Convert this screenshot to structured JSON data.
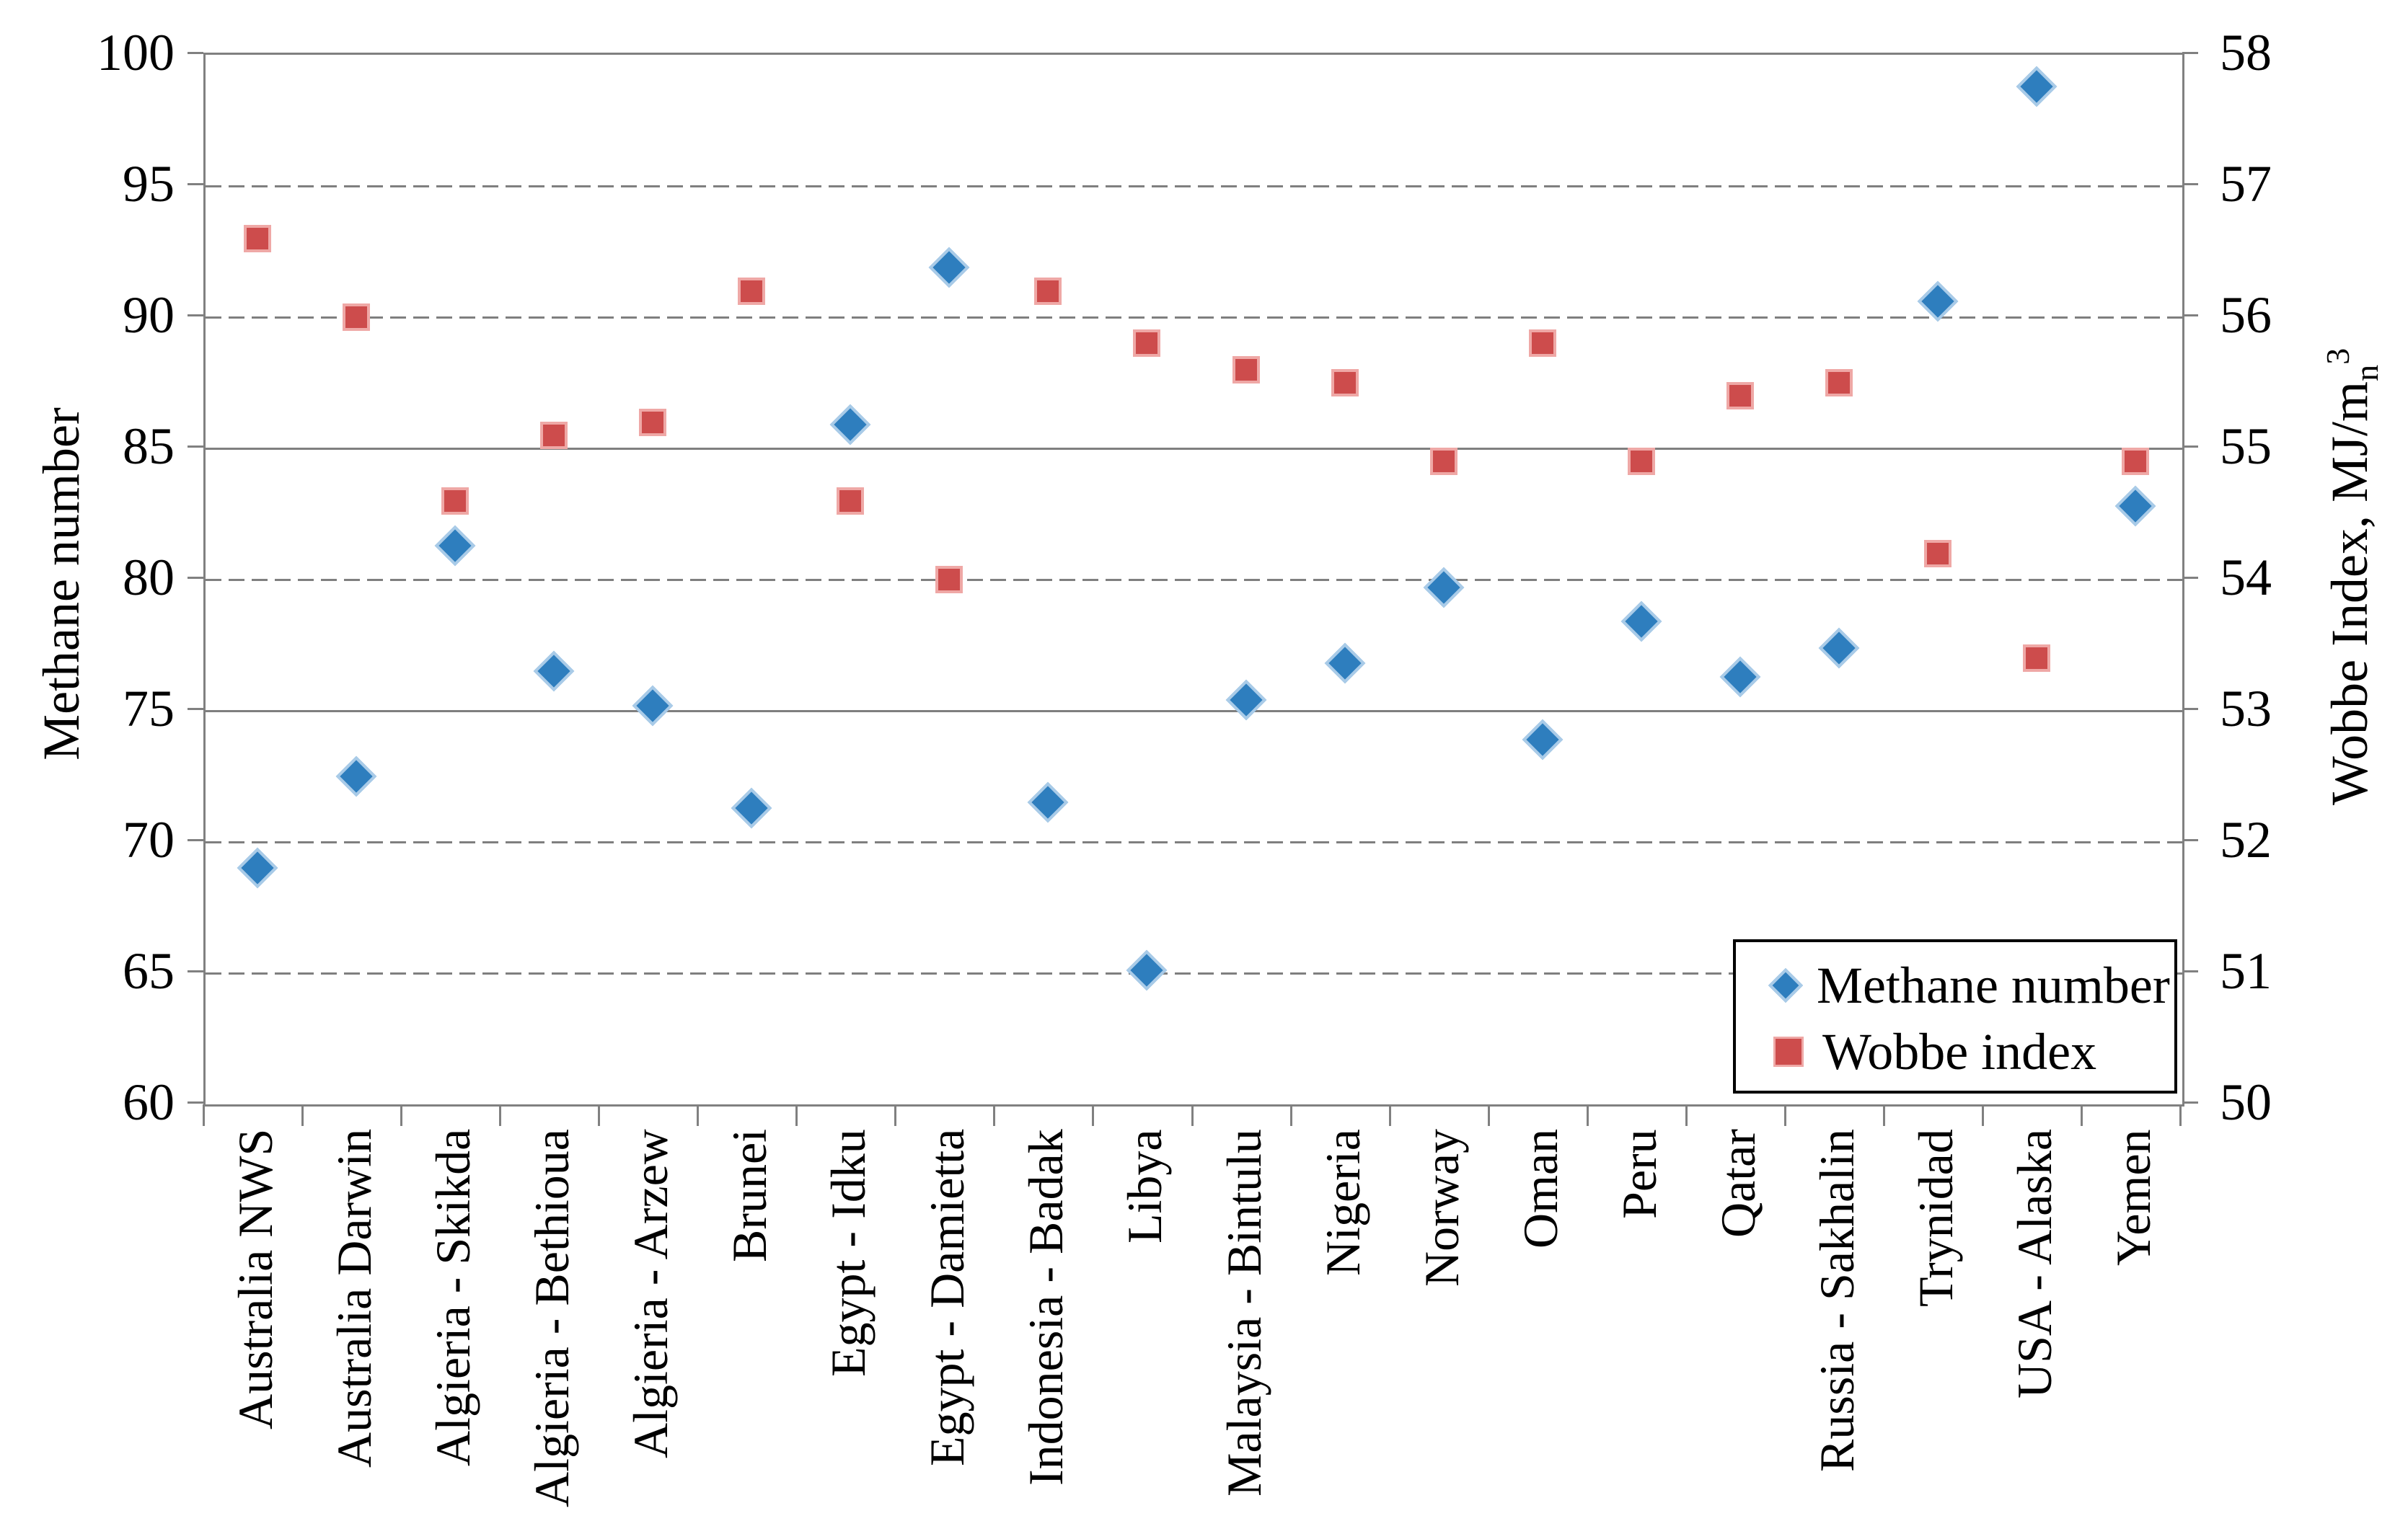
{
  "chart_data": {
    "type": "scatter",
    "title": "",
    "categories": [
      "Australia NWS",
      "Australia Darwin",
      "Algieria - Skikda",
      "Algieria - Bethioua",
      "Algieria - Arzew",
      "Brunei",
      "Egypt - Idku",
      "Egypt - Damietta",
      "Indonesia - Badak",
      "Libya",
      "Malaysia - Bintulu",
      "Nigeria",
      "Norway",
      "Oman",
      "Peru",
      "Qatar",
      "Russia - Sakhalin",
      "Trynidad",
      "USA - Alaska",
      "Yemen"
    ],
    "series": [
      {
        "name": "Methane number",
        "axis": "left",
        "marker": "diamond",
        "color": "#2e7ebe",
        "halo": "#a9cbe8",
        "values": [
          69.0,
          72.5,
          81.3,
          76.5,
          75.2,
          71.3,
          85.9,
          91.9,
          71.5,
          65.1,
          75.4,
          76.8,
          79.7,
          73.9,
          78.4,
          76.3,
          77.4,
          90.6,
          98.8,
          82.8
        ]
      },
      {
        "name": "Wobbe index",
        "axis": "right",
        "marker": "square",
        "color": "#cd4c4c",
        "halo": "#efa8a6",
        "values": [
          56.6,
          56.0,
          54.6,
          55.1,
          55.2,
          56.2,
          54.6,
          54.0,
          56.2,
          55.8,
          55.6,
          55.5,
          54.9,
          55.8,
          54.9,
          55.4,
          55.5,
          54.2,
          53.4,
          54.9
        ]
      }
    ],
    "left_axis": {
      "label": "Methane number",
      "min": 60,
      "max": 100,
      "step": 5,
      "ticks": [
        100,
        95,
        90,
        85,
        80,
        75,
        70,
        65,
        60
      ]
    },
    "right_axis": {
      "label_main": "Wobbe Index,  MJ/m",
      "label_sub": "n",
      "label_sup": "3",
      "min": 50,
      "max": 58,
      "step": 1,
      "ticks": [
        58,
        57,
        56,
        55,
        54,
        53,
        52,
        51,
        50
      ]
    },
    "grid": {
      "dashed_left_values": [
        95,
        90,
        80,
        70,
        65
      ],
      "solid_left_values": [
        85,
        75
      ],
      "gridlines_on": true
    },
    "legend": {
      "position": "bottom-right",
      "items": [
        {
          "label": "Methane number",
          "marker": "diamond"
        },
        {
          "label": "Wobbe index",
          "marker": "square"
        }
      ]
    }
  },
  "colors": {
    "gridline": "#7f7f7f",
    "axis_line": "#808080",
    "series_blue": "#2e7ebe",
    "series_red": "#cd4c4c",
    "legend_border": "#000000"
  }
}
